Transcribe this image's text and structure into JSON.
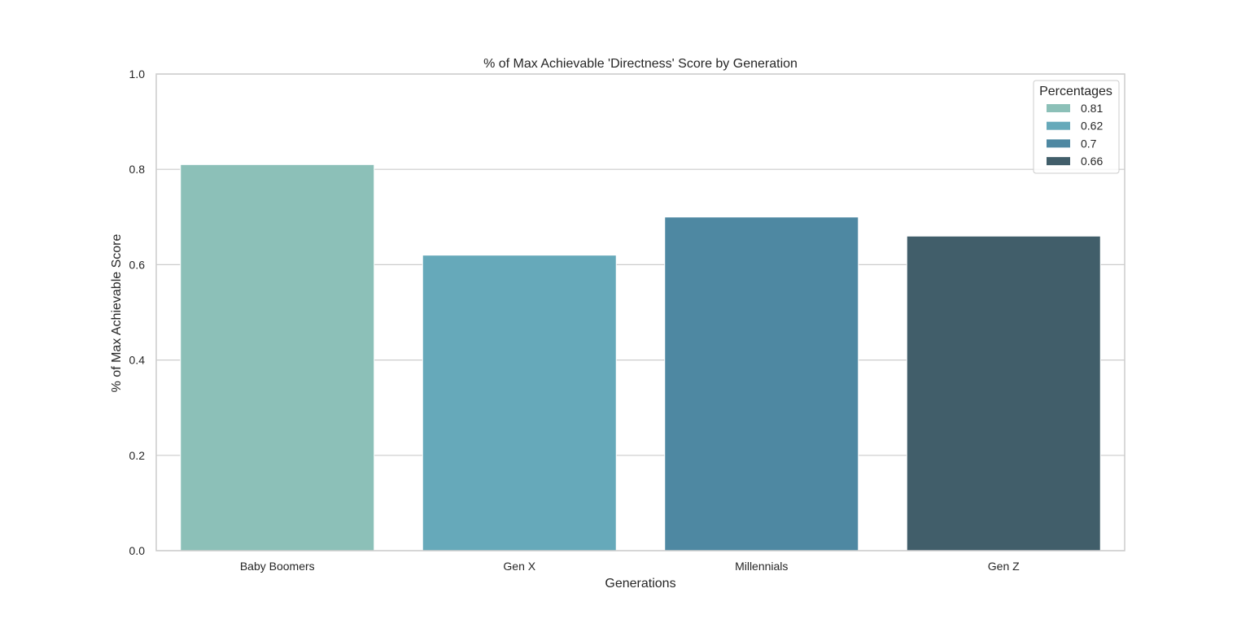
{
  "chart_data": {
    "type": "bar",
    "title": "% of Max Achievable 'Directness' Score by Generation",
    "xlabel": "Generations",
    "ylabel": "% of Max Achievable Score",
    "categories": [
      "Baby Boomers",
      "Gen X",
      "Millennials",
      "Gen Z"
    ],
    "values": [
      0.81,
      0.62,
      0.7,
      0.66
    ],
    "colors": [
      "#8cc0b8",
      "#66a9ba",
      "#4e88a2",
      "#415e6a"
    ],
    "ylim": [
      0,
      1.0
    ],
    "yticks": [
      "0.0",
      "0.2",
      "0.4",
      "0.6",
      "0.8",
      "1.0"
    ],
    "grid": "horizontal",
    "legend": {
      "title": "Percentages",
      "placement": "top-right",
      "entries": [
        "0.81",
        "0.62",
        "0.7",
        "0.66"
      ]
    }
  }
}
